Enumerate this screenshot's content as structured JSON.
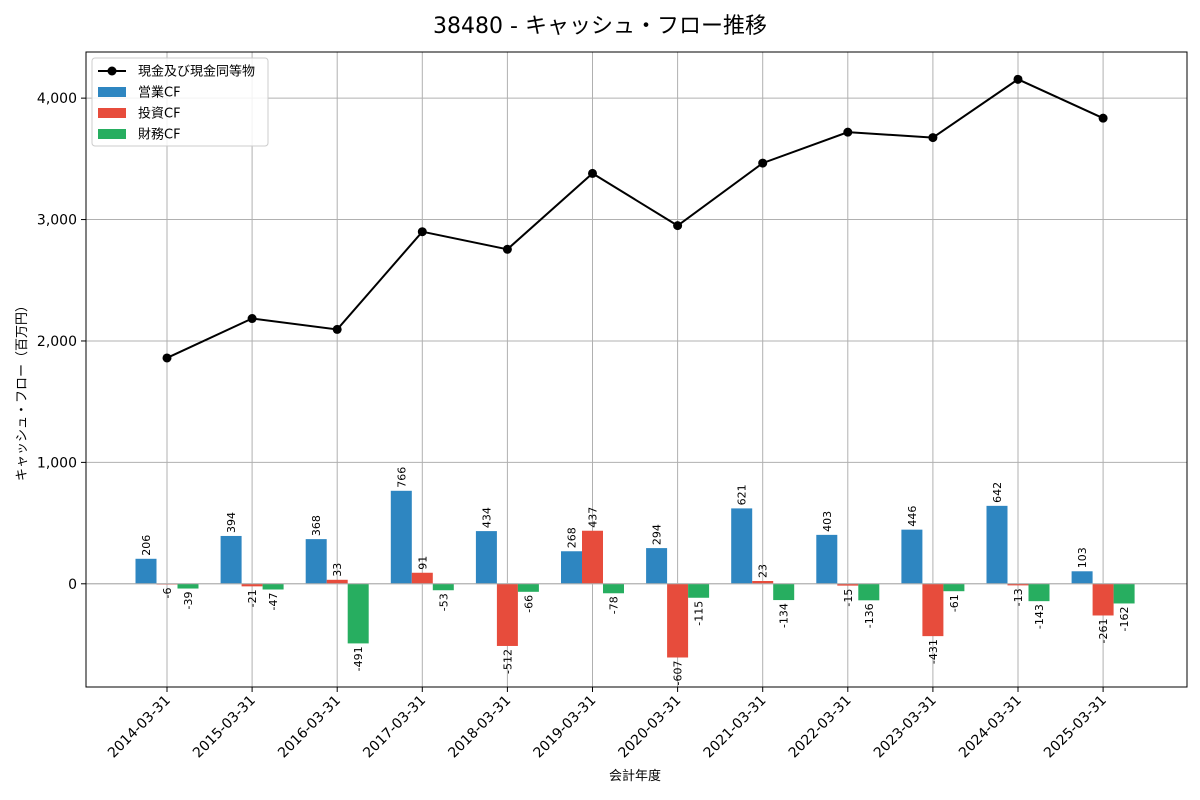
{
  "chart_data": {
    "type": "bar",
    "title": "38480 - キャッシュ・フロー推移",
    "xlabel": "会計年度",
    "ylabel": "キャッシュ・フロー（百万円）",
    "ylim": [
      -850,
      4380
    ],
    "yticks": [
      0,
      1000,
      2000,
      3000,
      4000
    ],
    "ytick_labels": [
      "0",
      "1,000",
      "2,000",
      "3,000",
      "4,000"
    ],
    "grid": true,
    "legend_position": "top-left",
    "categories": [
      "2014-03-31",
      "2015-03-31",
      "2016-03-31",
      "2017-03-31",
      "2018-03-31",
      "2019-03-31",
      "2020-03-31",
      "2021-03-31",
      "2022-03-31",
      "2023-03-31",
      "2024-03-31",
      "2025-03-31"
    ],
    "series": [
      {
        "name": "営業CF",
        "kind": "bar",
        "color": "#2e86c1",
        "values": [
          206,
          394,
          368,
          766,
          434,
          268,
          294,
          621,
          403,
          446,
          642,
          103
        ]
      },
      {
        "name": "投資CF",
        "kind": "bar",
        "color": "#e74c3c",
        "values": [
          -6,
          -21,
          33,
          91,
          -512,
          437,
          -607,
          23,
          -15,
          -431,
          -13,
          -261
        ]
      },
      {
        "name": "財務CF",
        "kind": "bar",
        "color": "#27ae60",
        "values": [
          -39,
          -47,
          -491,
          -53,
          -66,
          -78,
          -115,
          -134,
          -136,
          -61,
          -143,
          -162
        ]
      },
      {
        "name": "現金及び現金同等物",
        "kind": "line",
        "color": "#000000",
        "values": [
          1860,
          2185,
          2095,
          2900,
          2755,
          3380,
          2950,
          3465,
          3720,
          3675,
          4155,
          3835
        ]
      }
    ]
  }
}
